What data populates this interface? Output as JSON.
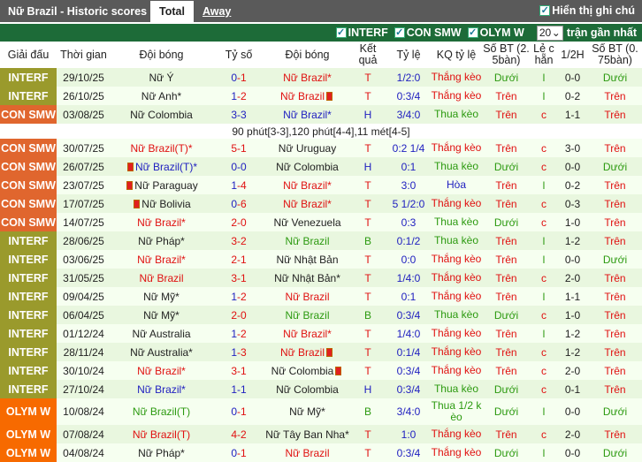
{
  "header": {
    "title": "Nữ Brazil - Historic scores",
    "tabs": [
      {
        "label": "Total",
        "active": true
      },
      {
        "label": "Away",
        "active": false
      }
    ],
    "show_notes_label": "Hiển thị ghi chú",
    "show_notes_checked": true
  },
  "filters": {
    "items": [
      {
        "label": "INTERF",
        "checked": true
      },
      {
        "label": "CON SMW",
        "checked": true
      },
      {
        "label": "OLYM W",
        "checked": true
      }
    ],
    "count_value": "20",
    "count_suffix": "trận gần nhất"
  },
  "columns": [
    "Giải đấu",
    "Thời gian",
    "Đội bóng",
    "Tỷ số",
    "Đội bóng",
    "Kết quả",
    "Tỷ lệ",
    "KQ tỷ lệ",
    "Số BT (2. 5bàn)",
    "Lẻ c hẵn",
    "1/2H",
    "Số BT (0. 75bàn)"
  ],
  "colors": {
    "INTERF": "#9a9a2c",
    "CON SMW": "#e0662e",
    "OLYM W": "#f76a00"
  },
  "rows": [
    {
      "league": "INTERF",
      "date": "29/10/25",
      "home": "Nữ Ý",
      "away": "Nữ Brazil*",
      "brazil": "away",
      "score": "0-1",
      "result": "T",
      "odds": "1/2:0",
      "odds_result": "Thắng kèo",
      "ou": "Dưới",
      "oe": "l",
      "half": "0-0",
      "ou2": "Dưới"
    },
    {
      "league": "INTERF",
      "date": "26/10/25",
      "home": "Nữ Anh*",
      "away": "Nữ Brazil",
      "brazil": "away",
      "card_away": "after",
      "score": "1-2",
      "result": "T",
      "odds": "0:3/4",
      "odds_result": "Thắng kèo",
      "ou": "Trên",
      "oe": "l",
      "half": "0-2",
      "ou2": "Trên"
    },
    {
      "league": "CON SMW",
      "date": "03/08/25",
      "home": "Nữ Colombia",
      "away": "Nữ Brazil*",
      "brazil": "away",
      "score": "3-3",
      "result": "H",
      "odds": "3/4:0",
      "odds_result": "Thua kèo",
      "ou": "Trên",
      "oe": "c",
      "half": "1-1",
      "ou2": "Trên",
      "note": "90 phút[3-3],120 phút[4-4],11 mét[4-5]"
    },
    {
      "league": "CON SMW",
      "date": "30/07/25",
      "home": "Nữ Brazil(T)*",
      "away": "Nữ Uruguay",
      "brazil": "home",
      "score": "5-1",
      "result": "T",
      "odds": "0:2 1/4",
      "odds_result": "Thắng kèo",
      "ou": "Trên",
      "oe": "c",
      "half": "3-0",
      "ou2": "Trên"
    },
    {
      "league": "CON SMW",
      "date": "26/07/25",
      "home": "Nữ Brazil(T)*",
      "away": "Nữ Colombia",
      "brazil": "home",
      "card_home": "before",
      "score": "0-0",
      "result": "H",
      "odds": "0:1",
      "odds_result": "Thua kèo",
      "ou": "Dưới",
      "oe": "c",
      "half": "0-0",
      "ou2": "Dưới"
    },
    {
      "league": "CON SMW",
      "date": "23/07/25",
      "home": "Nữ Paraguay",
      "away": "Nữ Brazil*",
      "brazil": "away",
      "card_home": "before",
      "score": "1-4",
      "result": "T",
      "odds": "3:0",
      "odds_result": "Hòa",
      "ou": "Trên",
      "oe": "l",
      "half": "0-2",
      "ou2": "Trên"
    },
    {
      "league": "CON SMW",
      "date": "17/07/25",
      "home": "Nữ Bolivia",
      "away": "Nữ Brazil*",
      "brazil": "away",
      "card_home": "before",
      "score": "0-6",
      "result": "T",
      "odds": "5 1/2:0",
      "odds_result": "Thắng kèo",
      "ou": "Trên",
      "oe": "c",
      "half": "0-3",
      "ou2": "Trên"
    },
    {
      "league": "CON SMW",
      "date": "14/07/25",
      "home": "Nữ Brazil*",
      "away": "Nữ Venezuela",
      "brazil": "home",
      "score": "2-0",
      "result": "T",
      "odds": "0:3",
      "odds_result": "Thua kèo",
      "ou": "Dưới",
      "oe": "c",
      "half": "1-0",
      "ou2": "Trên"
    },
    {
      "league": "INTERF",
      "date": "28/06/25",
      "home": "Nữ Pháp*",
      "away": "Nữ Brazil",
      "brazil": "away",
      "score": "3-2",
      "result": "B",
      "odds": "0:1/2",
      "odds_result": "Thua kèo",
      "ou": "Trên",
      "oe": "l",
      "half": "1-2",
      "ou2": "Trên"
    },
    {
      "league": "INTERF",
      "date": "03/06/25",
      "home": "Nữ Brazil*",
      "away": "Nữ Nhật Bản",
      "brazil": "home",
      "score": "2-1",
      "result": "T",
      "odds": "0:0",
      "odds_result": "Thắng kèo",
      "ou": "Trên",
      "oe": "l",
      "half": "0-0",
      "ou2": "Dưới"
    },
    {
      "league": "INTERF",
      "date": "31/05/25",
      "home": "Nữ Brazil",
      "away": "Nữ Nhật Bản*",
      "brazil": "home",
      "score": "3-1",
      "result": "T",
      "odds": "1/4:0",
      "odds_result": "Thắng kèo",
      "ou": "Trên",
      "oe": "c",
      "half": "2-0",
      "ou2": "Trên"
    },
    {
      "league": "INTERF",
      "date": "09/04/25",
      "home": "Nữ Mỹ*",
      "away": "Nữ Brazil",
      "brazil": "away",
      "score": "1-2",
      "result": "T",
      "odds": "0:1",
      "odds_result": "Thắng kèo",
      "ou": "Trên",
      "oe": "l",
      "half": "1-1",
      "ou2": "Trên"
    },
    {
      "league": "INTERF",
      "date": "06/04/25",
      "home": "Nữ Mỹ*",
      "away": "Nữ Brazil",
      "brazil": "away",
      "score": "2-0",
      "result": "B",
      "odds": "0:3/4",
      "odds_result": "Thua kèo",
      "ou": "Dưới",
      "oe": "c",
      "half": "1-0",
      "ou2": "Trên"
    },
    {
      "league": "INTERF",
      "date": "01/12/24",
      "home": "Nữ Australia",
      "away": "Nữ Brazil*",
      "brazil": "away",
      "score": "1-2",
      "result": "T",
      "odds": "1/4:0",
      "odds_result": "Thắng kèo",
      "ou": "Trên",
      "oe": "l",
      "half": "1-2",
      "ou2": "Trên"
    },
    {
      "league": "INTERF",
      "date": "28/11/24",
      "home": "Nữ Australia*",
      "away": "Nữ Brazil",
      "brazil": "away",
      "card_away": "after",
      "score": "1-3",
      "result": "T",
      "odds": "0:1/4",
      "odds_result": "Thắng kèo",
      "ou": "Trên",
      "oe": "c",
      "half": "1-2",
      "ou2": "Trên"
    },
    {
      "league": "INTERF",
      "date": "30/10/24",
      "home": "Nữ Brazil*",
      "away": "Nữ Colombia",
      "brazil": "home",
      "card_away": "after",
      "score": "3-1",
      "result": "T",
      "odds": "0:3/4",
      "odds_result": "Thắng kèo",
      "ou": "Trên",
      "oe": "c",
      "half": "2-0",
      "ou2": "Trên"
    },
    {
      "league": "INTERF",
      "date": "27/10/24",
      "home": "Nữ Brazil*",
      "away": "Nữ Colombia",
      "brazil": "home",
      "score": "1-1",
      "result": "H",
      "odds": "0:3/4",
      "odds_result": "Thua kèo",
      "ou": "Dưới",
      "oe": "c",
      "half": "0-1",
      "ou2": "Trên"
    },
    {
      "league": "OLYM W",
      "date": "10/08/24",
      "home": "Nữ Brazil(T)",
      "away": "Nữ Mỹ*",
      "brazil": "home",
      "score": "0-1",
      "result": "B",
      "odds": "3/4:0",
      "odds_result": "Thua 1/2 k èo",
      "ou": "Dưới",
      "oe": "l",
      "half": "0-0",
      "ou2": "Dưới"
    },
    {
      "league": "OLYM W",
      "date": "07/08/24",
      "home": "Nữ Brazil(T)",
      "away": "Nữ Tây Ban Nha*",
      "brazil": "home",
      "score": "4-2",
      "result": "T",
      "odds": "1:0",
      "odds_result": "Thắng kèo",
      "ou": "Trên",
      "oe": "c",
      "half": "2-0",
      "ou2": "Trên"
    },
    {
      "league": "OLYM W",
      "date": "04/08/24",
      "home": "Nữ Pháp*",
      "away": "Nữ Brazil",
      "brazil": "away",
      "score": "0-1",
      "result": "T",
      "odds": "0:3/4",
      "odds_result": "Thắng kèo",
      "ou": "Dưới",
      "oe": "l",
      "half": "0-0",
      "ou2": "Dưới"
    }
  ]
}
